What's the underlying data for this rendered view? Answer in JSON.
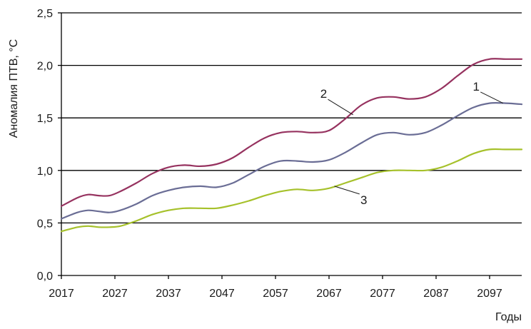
{
  "chart_data": {
    "type": "line",
    "ylabel": "Аномалия ПТВ, °С",
    "xlabel": "Годы",
    "ylim": [
      0,
      2.5
    ],
    "xlim": [
      2017,
      2103
    ],
    "y_ticks": [
      "0,0",
      "0,5",
      "1,0",
      "1,5",
      "2,0",
      "2,5"
    ],
    "y_tick_values": [
      0,
      0.5,
      1.0,
      1.5,
      2.0,
      2.5
    ],
    "x_ticks": [
      "2017",
      "2027",
      "2037",
      "2047",
      "2057",
      "2067",
      "2077",
      "2087",
      "2097"
    ],
    "x_tick_values": [
      2017,
      2027,
      2037,
      2047,
      2057,
      2067,
      2077,
      2087,
      2097
    ],
    "grid": "horizontal",
    "series": [
      {
        "name": "1",
        "color": "#6a6d95",
        "x": [
          2017,
          2020,
          2022,
          2024,
          2026,
          2028,
          2031,
          2034,
          2037,
          2040,
          2043,
          2046,
          2049,
          2052,
          2055,
          2058,
          2061,
          2064,
          2067,
          2070,
          2073,
          2076,
          2079,
          2082,
          2085,
          2088,
          2091,
          2094,
          2097,
          2100,
          2103
        ],
        "values": [
          0.54,
          0.6,
          0.62,
          0.61,
          0.6,
          0.62,
          0.68,
          0.76,
          0.81,
          0.84,
          0.85,
          0.84,
          0.88,
          0.96,
          1.04,
          1.09,
          1.09,
          1.08,
          1.1,
          1.17,
          1.26,
          1.34,
          1.36,
          1.34,
          1.36,
          1.43,
          1.52,
          1.6,
          1.64,
          1.64,
          1.63
        ]
      },
      {
        "name": "2",
        "color": "#96325f",
        "x": [
          2017,
          2020,
          2022,
          2024,
          2026,
          2028,
          2031,
          2034,
          2037,
          2040,
          2043,
          2046,
          2049,
          2052,
          2055,
          2058,
          2061,
          2064,
          2067,
          2070,
          2073,
          2076,
          2079,
          2082,
          2085,
          2088,
          2091,
          2094,
          2097,
          2100,
          2103
        ],
        "values": [
          0.66,
          0.74,
          0.77,
          0.76,
          0.76,
          0.8,
          0.88,
          0.97,
          1.03,
          1.05,
          1.04,
          1.06,
          1.12,
          1.22,
          1.31,
          1.36,
          1.37,
          1.36,
          1.38,
          1.49,
          1.62,
          1.69,
          1.7,
          1.68,
          1.7,
          1.78,
          1.9,
          2.01,
          2.06,
          2.06,
          2.06
        ]
      },
      {
        "name": "3",
        "color": "#a6c12b",
        "x": [
          2017,
          2020,
          2022,
          2024,
          2026,
          2028,
          2031,
          2034,
          2037,
          2040,
          2043,
          2046,
          2049,
          2052,
          2055,
          2058,
          2061,
          2064,
          2067,
          2070,
          2073,
          2076,
          2079,
          2082,
          2085,
          2088,
          2091,
          2094,
          2097,
          2100,
          2103
        ],
        "values": [
          0.42,
          0.46,
          0.47,
          0.46,
          0.46,
          0.47,
          0.52,
          0.58,
          0.62,
          0.64,
          0.64,
          0.64,
          0.67,
          0.71,
          0.76,
          0.8,
          0.82,
          0.81,
          0.83,
          0.88,
          0.93,
          0.98,
          1.0,
          1.0,
          1.0,
          1.03,
          1.09,
          1.16,
          1.2,
          1.2,
          1.2
        ]
      }
    ],
    "annotations": [
      {
        "text": "1",
        "x": 2094.5,
        "y": 1.76,
        "point_x": 2099.5,
        "point_y": 1.64
      },
      {
        "text": "2",
        "x": 2066,
        "y": 1.69,
        "point_x": 2071.5,
        "point_y": 1.53
      },
      {
        "text": "3",
        "x": 2073.5,
        "y": 0.68,
        "point_x": 2068,
        "point_y": 0.85
      }
    ]
  }
}
